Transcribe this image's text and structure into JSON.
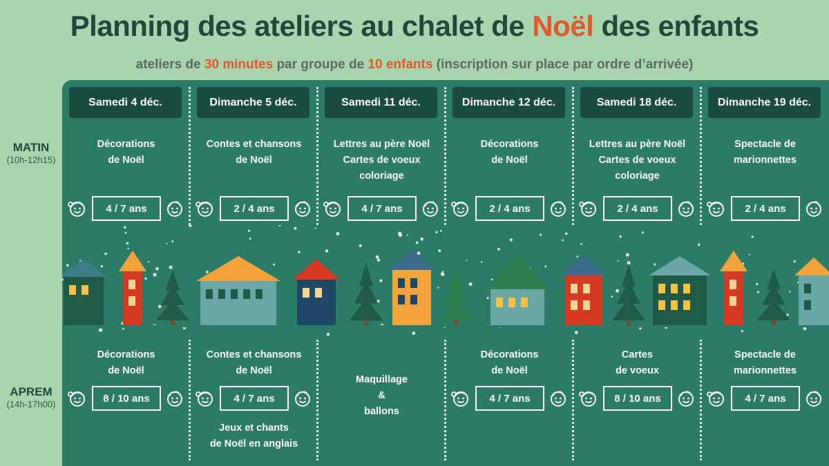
{
  "title": {
    "before": "Planning des ateliers au chalet de ",
    "accent": "Noël",
    "after": " des enfants"
  },
  "subtitle": {
    "p1": "ateliers de ",
    "a1": "30 minutes",
    "p2": " par groupe de ",
    "a2": "10 enfants",
    "p3": " (inscription sur place par ordre d’arrivée)"
  },
  "slots": {
    "morning": {
      "label": "MATIN",
      "time": "(10h-12h15)"
    },
    "afternoon": {
      "label": "APREM",
      "time": "(14h-17h00)"
    }
  },
  "days": [
    {
      "label": "Samedi 4 déc.",
      "morning": {
        "lines": [
          "Décorations",
          "de Noël"
        ],
        "age": "4 / 7 ans"
      },
      "afternoon": {
        "lines": [
          "Décorations",
          "de Noël"
        ],
        "age": "8 / 10 ans",
        "extra": []
      }
    },
    {
      "label": "Dimanche 5 déc.",
      "morning": {
        "lines": [
          "Contes et chansons",
          "de Noël"
        ],
        "age": "2 / 4 ans"
      },
      "afternoon": {
        "lines": [
          "Contes et chansons",
          "de Noël"
        ],
        "age": "4 / 7 ans",
        "extra": [
          "Jeux et chants",
          "de Noël en anglais"
        ]
      }
    },
    {
      "label": "Samedi 11 déc.",
      "morning": {
        "lines": [
          "Lettres au père Noël",
          "Cartes de voeux",
          "coloriage"
        ],
        "age": "4 / 7 ans"
      },
      "afternoon": {
        "lines": [
          "Maquillage",
          "&",
          "ballons"
        ],
        "age": "",
        "extra": []
      }
    },
    {
      "label": "Dimanche 12 déc.",
      "morning": {
        "lines": [
          "Décorations",
          "de Noël"
        ],
        "age": "2 / 4 ans"
      },
      "afternoon": {
        "lines": [
          "Décorations",
          "de Noël"
        ],
        "age": "4 / 7 ans",
        "extra": []
      }
    },
    {
      "label": "Samedi 18 déc.",
      "morning": {
        "lines": [
          "Lettres au père Noël",
          "Cartes de voeux",
          "coloriage"
        ],
        "age": "2 / 4 ans"
      },
      "afternoon": {
        "lines": [
          "Cartes",
          "de voeux"
        ],
        "age": "8 / 10 ans",
        "extra": []
      }
    },
    {
      "label": "Dimanche 19 déc.",
      "morning": {
        "lines": [
          "Spectacle de",
          "marionnettes"
        ],
        "age": "2 / 4 ans"
      },
      "afternoon": {
        "lines": [
          "Spectacle de",
          "marionnettes"
        ],
        "age": "4 / 7 ans",
        "extra": []
      }
    }
  ],
  "colors": {
    "background": "#a8d5ad",
    "board": "#2c7b66",
    "header": "#1a4b3f",
    "title": "#1d4a3d",
    "accent": "#e2582e"
  },
  "icons": [
    "girl-face-icon",
    "boy-face-icon",
    "christmas-village-illustration"
  ]
}
